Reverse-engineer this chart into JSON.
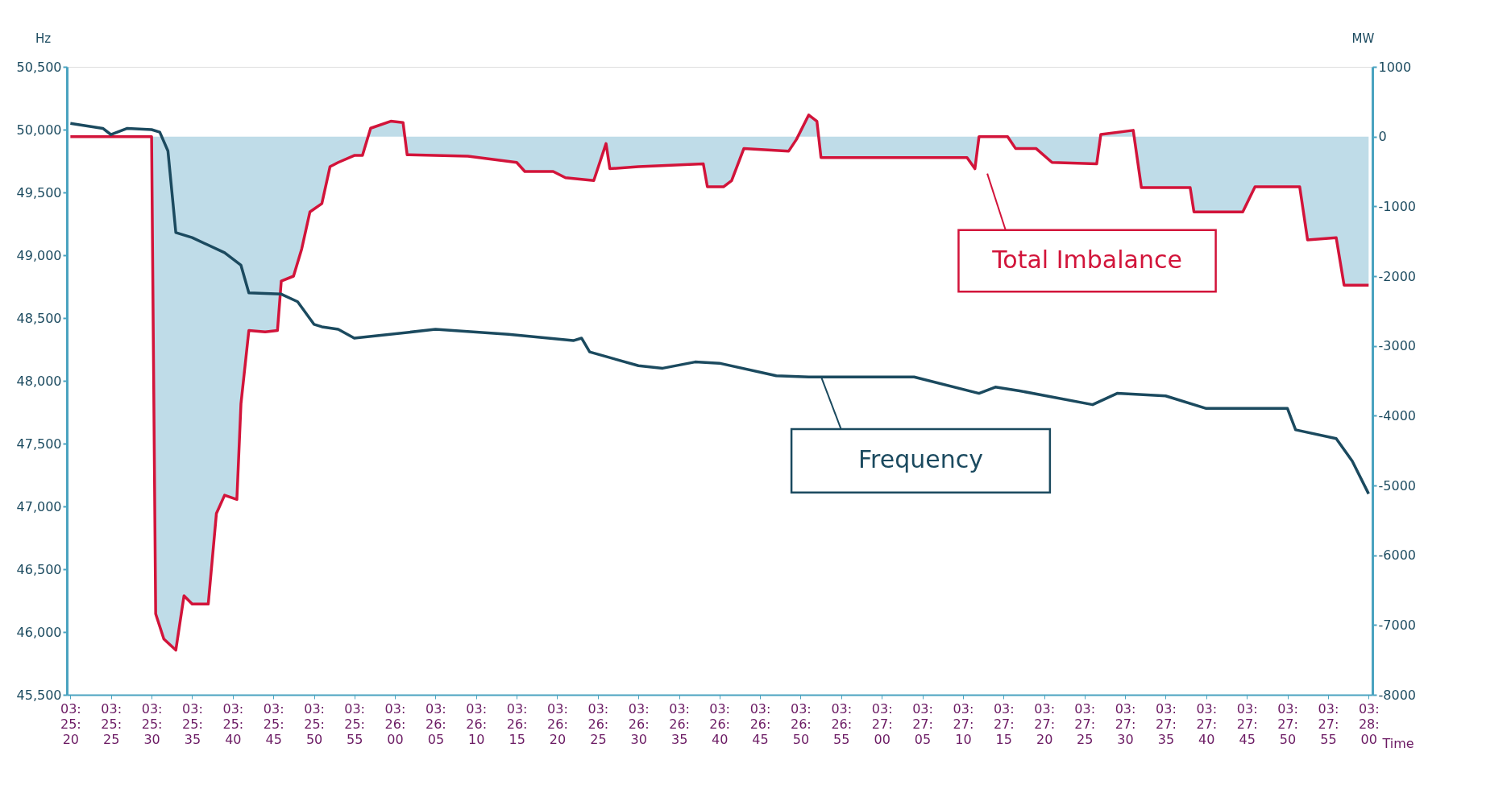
{
  "chart_data": {
    "type": "line",
    "xlabel": "Time",
    "ylabel": "Hz",
    "y2label": "MW",
    "xlim": [
      3.4221,
      3.4668
    ],
    "xticks": [
      {
        "value": 3.42222,
        "label": "03:25:20"
      },
      {
        "value": 3.42361,
        "label": "03:25:25"
      },
      {
        "value": 3.425,
        "label": "03:25:30"
      },
      {
        "value": 3.42639,
        "label": "03:25:35"
      },
      {
        "value": 3.42778,
        "label": "03:25:40"
      },
      {
        "value": 3.42917,
        "label": "03:25:45"
      },
      {
        "value": 3.43056,
        "label": "03:25:50"
      },
      {
        "value": 3.43194,
        "label": "03:25:55"
      },
      {
        "value": 3.43333,
        "label": "03:26:00"
      },
      {
        "value": 3.43472,
        "label": "03:26:05"
      },
      {
        "value": 3.43611,
        "label": "03:26:10"
      },
      {
        "value": 3.4375,
        "label": "03:26:15"
      },
      {
        "value": 3.43889,
        "label": "03:26:20"
      },
      {
        "value": 3.44028,
        "label": "03:26:25"
      },
      {
        "value": 3.44167,
        "label": "03:26:30"
      },
      {
        "value": 3.44306,
        "label": "03:26:35"
      },
      {
        "value": 3.44444,
        "label": "03:26:40"
      },
      {
        "value": 3.44583,
        "label": "03:26:45"
      },
      {
        "value": 3.44722,
        "label": "03:26:50"
      },
      {
        "value": 3.44861,
        "label": "03:26:55"
      },
      {
        "value": 3.45,
        "label": "03:27:00"
      },
      {
        "value": 3.45139,
        "label": "03:27:05"
      },
      {
        "value": 3.45278,
        "label": "03:27:10"
      },
      {
        "value": 3.45417,
        "label": "03:27:15"
      },
      {
        "value": 3.45556,
        "label": "03:27:20"
      },
      {
        "value": 3.45694,
        "label": "03:27:25"
      },
      {
        "value": 3.45833,
        "label": "03:27:30"
      },
      {
        "value": 3.45972,
        "label": "03:27:35"
      },
      {
        "value": 3.46111,
        "label": "03:27:40"
      },
      {
        "value": 3.4625,
        "label": "03:27:45"
      },
      {
        "value": 3.46389,
        "label": "03:27:50"
      },
      {
        "value": 3.46528,
        "label": "03:27:55"
      },
      {
        "value": 3.46667,
        "label": "03:28:00"
      }
    ],
    "ylim": [
      45500,
      50500
    ],
    "yticks": [
      {
        "value": 45500,
        "label": "45,500"
      },
      {
        "value": 46000,
        "label": "46,000"
      },
      {
        "value": 46500,
        "label": "46,500"
      },
      {
        "value": 47000,
        "label": "47,000"
      },
      {
        "value": 47500,
        "label": "47,500"
      },
      {
        "value": 48000,
        "label": "48,000"
      },
      {
        "value": 48500,
        "label": "48,500"
      },
      {
        "value": 49000,
        "label": "49,000"
      },
      {
        "value": 49500,
        "label": "49,500"
      },
      {
        "value": 50000,
        "label": "50,000"
      },
      {
        "value": 50500,
        "label": "50,500"
      }
    ],
    "y2lim": [
      -8000,
      1000
    ],
    "y2ticks": [
      -8000,
      -7000,
      -6000,
      -5000,
      -4000,
      -3000,
      -2000,
      -1000,
      0,
      1000
    ],
    "series": [
      {
        "type": "area",
        "name": "Total Imbalance",
        "color": "#a9d0e0",
        "axis": "y2",
        "x": [
          3.42222,
          3.425,
          3.42514,
          3.42542,
          3.42583,
          3.42611,
          3.42639,
          3.42694,
          3.42722,
          3.4275,
          3.42792,
          3.42806,
          3.42833,
          3.42889,
          3.42931,
          3.42944,
          3.42986,
          3.43014,
          3.43042,
          3.43083,
          3.43111,
          3.43139,
          3.43194,
          3.43222,
          3.4325,
          3.43319,
          3.43361,
          3.43375,
          3.43583,
          3.4375,
          3.43778,
          3.43875,
          3.43917,
          3.44014,
          3.44056,
          3.44069,
          3.44167,
          3.44389,
          3.44403,
          3.44458,
          3.44486,
          3.44528,
          3.44681,
          3.44708,
          3.4475,
          3.44778,
          3.44792,
          3.45292,
          3.45319,
          3.45333,
          3.45431,
          3.45458,
          3.45528,
          3.45583,
          3.45736,
          3.4575,
          3.45861,
          3.45889,
          3.46056,
          3.46069,
          3.46236,
          3.46278,
          3.46431,
          3.46458,
          3.46556,
          3.46583,
          3.46667
        ],
        "values": [
          0,
          0,
          -6840,
          -7200,
          -7360,
          -6580,
          -6700,
          -6700,
          -5400,
          -5140,
          -5200,
          -3830,
          -2780,
          -2800,
          -2780,
          -2070,
          -2000,
          -1610,
          -1080,
          -960,
          -430,
          -370,
          -270,
          -270,
          120,
          220,
          200,
          -260,
          -280,
          -370,
          -500,
          -500,
          -590,
          -630,
          -100,
          -460,
          -430,
          -390,
          -720,
          -720,
          -630,
          -170,
          -210,
          -40,
          310,
          220,
          -300,
          -300,
          -460,
          0,
          0,
          -170,
          -170,
          -370,
          -390,
          30,
          90,
          -730,
          -730,
          -1080,
          -1080,
          -720,
          -720,
          -1480,
          -1450,
          -2130,
          -2130
        ]
      },
      {
        "name": "Frequency",
        "color": "#1b4a5f",
        "x": [
          3.42222,
          3.42333,
          3.42361,
          3.42417,
          3.425,
          3.42528,
          3.42556,
          3.42583,
          3.42639,
          3.4275,
          3.42806,
          3.42833,
          3.42944,
          3.43,
          3.43056,
          3.43083,
          3.43139,
          3.43194,
          3.43278,
          3.43472,
          3.43722,
          3.43944,
          3.43972,
          3.44,
          3.44167,
          3.4425,
          3.44361,
          3.44444,
          3.44639,
          3.4475,
          3.45111,
          3.45333,
          3.45389,
          3.45472,
          3.45722,
          3.45806,
          3.45972,
          3.46111,
          3.46306,
          3.46389,
          3.46417,
          3.46556,
          3.46611,
          3.46667
        ],
        "values": [
          50050,
          50010,
          49960,
          50010,
          50000,
          49980,
          49830,
          49180,
          49140,
          49020,
          48920,
          48700,
          48690,
          48630,
          48450,
          48430,
          48410,
          48340,
          48360,
          48410,
          48370,
          48320,
          48340,
          48230,
          48120,
          48100,
          48150,
          48140,
          48040,
          48030,
          48030,
          47900,
          47950,
          47920,
          47810,
          47900,
          47880,
          47780,
          47780,
          47780,
          47610,
          47540,
          47360,
          47100
        ]
      }
    ]
  }
}
